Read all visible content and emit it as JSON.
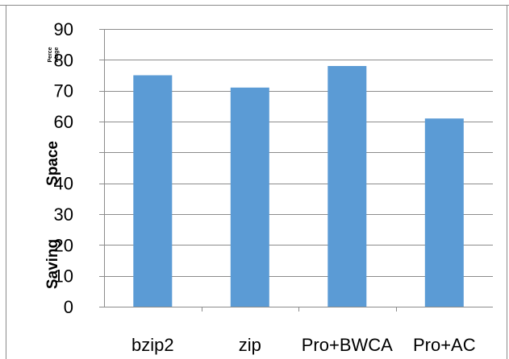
{
  "chart_data": {
    "type": "bar",
    "categories": [
      "bzip2",
      "zip",
      "Pro+BWCA",
      "Pro+AC"
    ],
    "values": [
      75,
      71,
      78,
      61
    ],
    "ylabel_words": [
      "Saving",
      "Space",
      "Perce",
      "ntage"
    ],
    "ylim": [
      0,
      90
    ],
    "yticks": [
      "0",
      "10",
      "20",
      "30",
      "40",
      "60",
      "70",
      "80",
      "90"
    ],
    "grid": true,
    "colors": {
      "bar": "#5b9bd5",
      "grid": "#8c8c8c",
      "axis": "#8c8c8c"
    }
  }
}
